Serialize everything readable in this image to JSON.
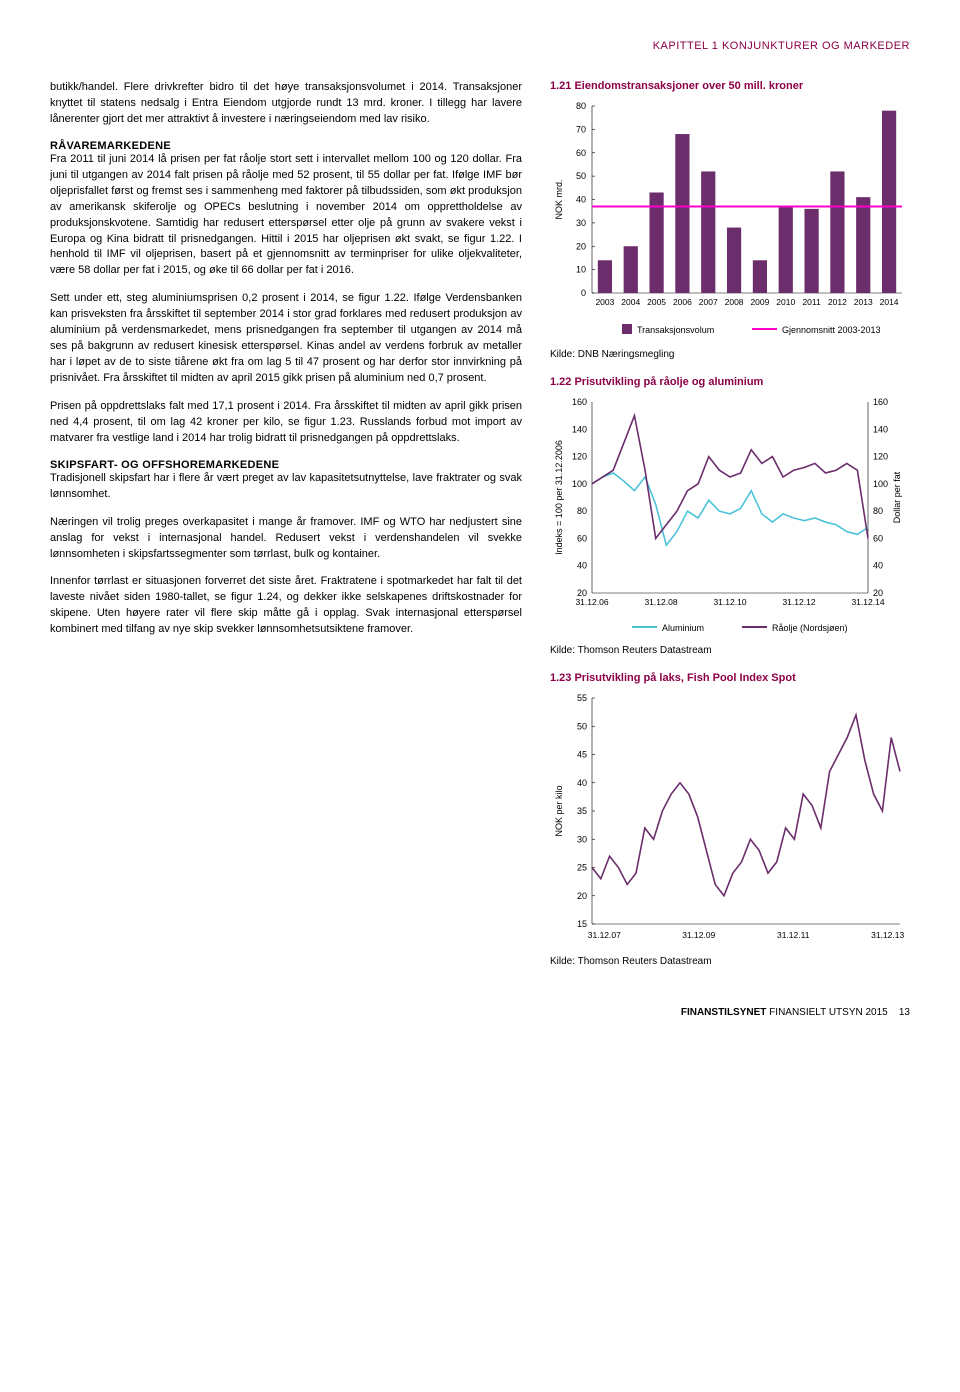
{
  "header": "KAPITTEL 1 KONJUNKTURER OG MARKEDER",
  "left": {
    "p1": "butikk/handel. Flere drivkrefter bidro til det høye transaksjonsvolumet i 2014. Transaksjoner knyttet til statens nedsalg i Entra Eiendom utgjorde rundt 13 mrd. kroner. I tillegg har lavere lånerenter gjort det mer attraktivt å investere i næringseiendom med lav risiko.",
    "h1": "RÅVAREMARKEDENE",
    "p2": "Fra 2011 til juni 2014 lå prisen per fat råolje stort sett i intervallet mellom 100 og 120 dollar. Fra juni til utgangen av 2014 falt prisen på råolje med 52 prosent, til 55 dollar per fat. Ifølge IMF bør oljeprisfallet først og fremst ses i sammenheng med faktorer på tilbudssiden, som økt produksjon av amerikansk skiferolje og OPECs beslutning i november 2014 om opprettholdelse av produksjonskvotene. Samtidig har redusert etterspørsel etter olje på grunn av svakere vekst i Europa og Kina bidratt til prisnedgangen. Hittil i 2015 har oljeprisen økt svakt, se figur 1.22. I henhold til IMF vil oljeprisen, basert på et gjennomsnitt av terminpriser for ulike oljekvaliteter, være 58 dollar per fat i 2015, og øke til 66 dollar per fat i 2016.",
    "p3": "Sett under ett, steg aluminiumsprisen 0,2 prosent i 2014, se figur 1.22. Ifølge Verdensbanken kan prisveksten fra årsskiftet til september 2014 i stor grad forklares med redusert produksjon av aluminium på verdensmarkedet, mens prisnedgangen fra september til utgangen av 2014 må ses på bakgrunn av redusert kinesisk etterspørsel. Kinas andel av verdens forbruk av metaller har i løpet av de to siste tiårene økt fra om lag 5 til 47 prosent og har derfor stor innvirkning på prisnivået. Fra årsskiftet til midten av april 2015 gikk prisen på aluminium ned 0,7 prosent.",
    "p4": "Prisen på oppdrettslaks falt med 17,1 prosent i 2014. Fra årsskiftet til midten av april gikk prisen ned 4,4 prosent, til om lag 42 kroner per kilo, se figur 1.23. Russlands forbud mot import av matvarer fra vestlige land i 2014 har trolig bidratt til prisnedgangen på oppdrettslaks.",
    "h2": "SKIPSFART- OG OFFSHOREMARKEDENE",
    "p5": "Tradisjonell skipsfart har i flere år vært preget av lav kapasitetsutnyttelse, lave fraktrater og svak lønnsomhet.",
    "p6": "Næringen vil trolig preges overkapasitet i mange år framover. IMF og WTO har nedjustert sine anslag for vekst i internasjonal handel. Redusert vekst i verdenshandelen vil svekke lønnsomheten i skipsfartssegmenter som tørrlast, bulk og kontainer.",
    "p7": "Innenfor tørrlast er situasjonen forverret det siste året. Fraktratene i spotmarkedet har falt til det laveste nivået siden 1980-tallet, se figur 1.24, og dekker ikke selskapenes driftskostnader for skipene. Uten høyere rater vil flere skip måtte gå i opplag. Svak internasjonal etterspørsel kombinert med tilfang av nye skip svekker lønnsomhetsutsiktene framover."
  },
  "chart1": {
    "title": "1.21 Eiendomstransaksjoner over 50 mill. kroner",
    "ylabel": "NOK mrd.",
    "categories": [
      "2003",
      "2004",
      "2005",
      "2006",
      "2007",
      "2008",
      "2009",
      "2010",
      "2011",
      "2012",
      "2013",
      "2014"
    ],
    "values": [
      14,
      20,
      43,
      68,
      52,
      28,
      14,
      37,
      36,
      52,
      41,
      78
    ],
    "avg_label": "Gjennomsnitt 2003-2013",
    "avg_value": 37,
    "series_label": "Transaksjonsvolum",
    "bar_color": "#6b2d6c",
    "avg_color": "#ff00cc",
    "ylim": [
      0,
      80
    ],
    "ytick_step": 10,
    "source": "Kilde: DNB Næringsmegling"
  },
  "chart2": {
    "title": "1.22 Prisutvikling på råolje og aluminium",
    "ylabel_left": "Indeks = 100 per 31.12.2006",
    "ylabel_right": "Dollar per fat",
    "xticks": [
      "31.12.06",
      "31.12.08",
      "31.12.10",
      "31.12.12",
      "31.12.14"
    ],
    "ylim": [
      20,
      160
    ],
    "ytick_step": 20,
    "aluminium_color": "#4dc3d9",
    "oil_color": "#6b2d6c",
    "aluminium_label": "Aluminium",
    "oil_label": "Råolje (Nordsjøen)",
    "aluminium_series": [
      100,
      105,
      108,
      102,
      95,
      105,
      85,
      55,
      65,
      80,
      75,
      88,
      80,
      78,
      82,
      95,
      78,
      72,
      78,
      75,
      73,
      75,
      72,
      70,
      65,
      63,
      68
    ],
    "oil_series": [
      100,
      105,
      110,
      130,
      150,
      110,
      60,
      70,
      80,
      95,
      100,
      120,
      110,
      105,
      108,
      125,
      115,
      120,
      105,
      110,
      112,
      115,
      108,
      110,
      115,
      110,
      60
    ],
    "source": "Kilde: Thomson Reuters Datastream"
  },
  "chart3": {
    "title": "1.23 Prisutvikling på laks, Fish Pool Index Spot",
    "ylabel": "NOK per kilo",
    "xticks": [
      "31.12.07",
      "31.12.09",
      "31.12.11",
      "31.12.13"
    ],
    "ylim": [
      15,
      55
    ],
    "ytick_step": 5,
    "line_color": "#6b2d6c",
    "series": [
      25,
      23,
      27,
      25,
      22,
      24,
      32,
      30,
      35,
      38,
      40,
      38,
      34,
      28,
      22,
      20,
      24,
      26,
      30,
      28,
      24,
      26,
      32,
      30,
      38,
      36,
      32,
      42,
      45,
      48,
      52,
      44,
      38,
      35,
      48,
      42
    ],
    "source": "Kilde: Thomson Reuters Datastream"
  },
  "footer": {
    "bold": "FINANSTILSYNET",
    "rest": " FINANSIELT UTSYN 2015",
    "page": "13"
  }
}
